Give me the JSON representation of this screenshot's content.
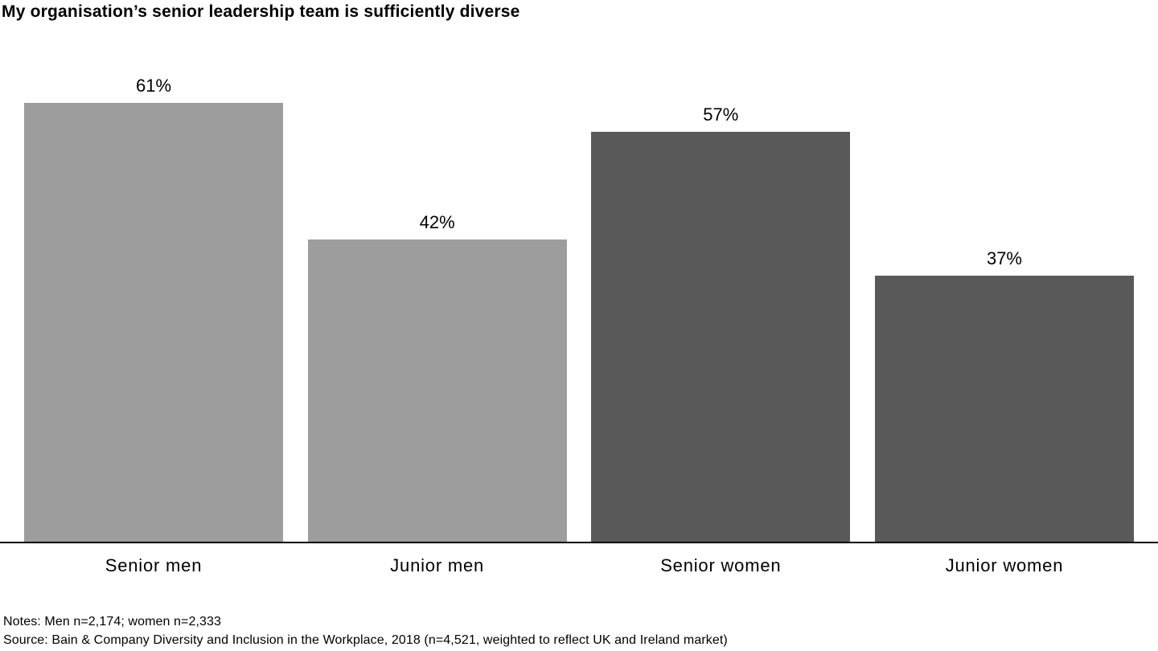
{
  "title": "My organisation’s senior leadership team is sufficiently diverse",
  "chart_data": {
    "type": "bar",
    "title": "My organisation’s senior leadership team is sufficiently diverse",
    "categories": [
      "Senior men",
      "Junior men",
      "Senior women",
      "Junior women"
    ],
    "values": [
      61,
      42,
      57,
      37
    ],
    "value_labels": [
      "61%",
      "42%",
      "57%",
      "37%"
    ],
    "series": [
      {
        "name": "Men",
        "categories": [
          "Senior men",
          "Junior men"
        ],
        "values": [
          61,
          42
        ]
      },
      {
        "name": "Women",
        "categories": [
          "Senior women",
          "Junior women"
        ],
        "values": [
          57,
          37
        ]
      }
    ],
    "xlabel": "",
    "ylabel": "",
    "unit": "%",
    "ylim": [
      0,
      68
    ],
    "grid": false,
    "legend": false,
    "bar_colors": [
      "#9d9d9d",
      "#9d9d9d",
      "#595959",
      "#595959"
    ]
  },
  "colors": {
    "men_bar": "#9d9d9d",
    "women_bar": "#595959",
    "axis": "#000000",
    "text": "#000000",
    "background": "#ffffff"
  },
  "footer": {
    "notes": "Notes: Men n=2,174; women n=2,333",
    "source": "Source: Bain & Company Diversity and Inclusion in the Workplace, 2018 (n=4,521, weighted to reflect UK and Ireland market)"
  }
}
